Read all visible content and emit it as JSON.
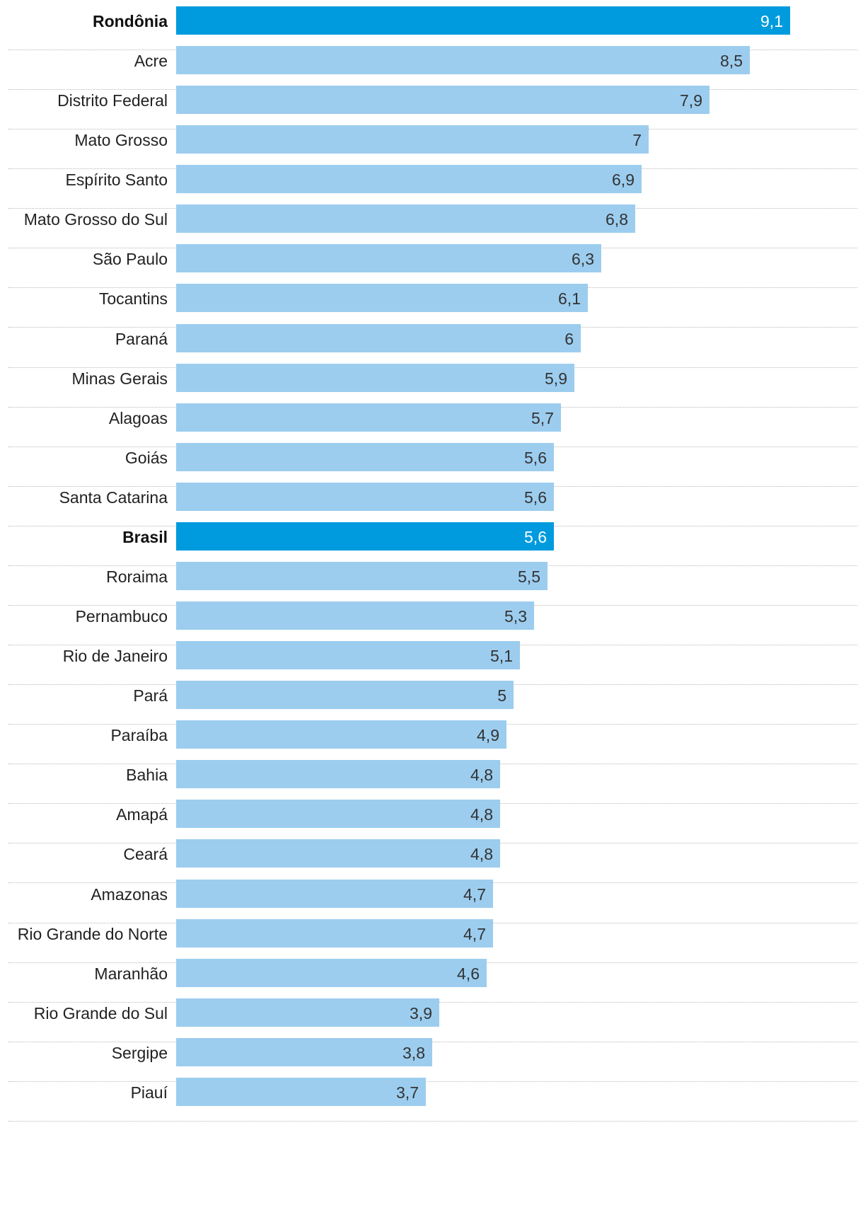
{
  "chart_data": {
    "type": "bar",
    "orientation": "horizontal",
    "title": "",
    "xlabel": "",
    "ylabel": "",
    "xlim": [
      0,
      9.1
    ],
    "grid": false,
    "legend": "none",
    "colors": {
      "default": "#9ccdef",
      "highlight": "#009bde",
      "label_text": "#222222",
      "value_text": "#333333",
      "value_text_highlight": "#ffffff",
      "divider": "#b8b8b8"
    },
    "categories": [
      "Rondônia",
      "Acre",
      "Distrito Federal",
      "Mato Grosso",
      "Espírito Santo",
      "Mato Grosso do Sul",
      "São Paulo",
      "Tocantins",
      "Paraná",
      "Minas Gerais",
      "Alagoas",
      "Goiás",
      "Santa Catarina",
      "Brasil",
      "Roraima",
      "Pernambuco",
      "Rio de Janeiro",
      "Pará",
      "Paraíba",
      "Bahia",
      "Amapá",
      "Ceará",
      "Amazonas",
      "Rio Grande do Norte",
      "Maranhão",
      "Rio Grande do Sul",
      "Sergipe",
      "Piauí"
    ],
    "values": [
      9.1,
      8.5,
      7.9,
      7,
      6.9,
      6.8,
      6.3,
      6.1,
      6,
      5.9,
      5.7,
      5.6,
      5.6,
      5.6,
      5.5,
      5.3,
      5.1,
      5,
      4.9,
      4.8,
      4.8,
      4.8,
      4.7,
      4.7,
      4.6,
      3.9,
      3.8,
      3.7
    ],
    "value_labels": [
      "9,1",
      "8,5",
      "7,9",
      "7",
      "6,9",
      "6,8",
      "6,3",
      "6,1",
      "6",
      "5,9",
      "5,7",
      "5,6",
      "5,6",
      "5,6",
      "5,5",
      "5,3",
      "5,1",
      "5",
      "4,9",
      "4,8",
      "4,8",
      "4,8",
      "4,7",
      "4,7",
      "4,6",
      "3,9",
      "3,8",
      "3,7"
    ],
    "highlighted": [
      "Rondônia",
      "Brasil"
    ]
  }
}
